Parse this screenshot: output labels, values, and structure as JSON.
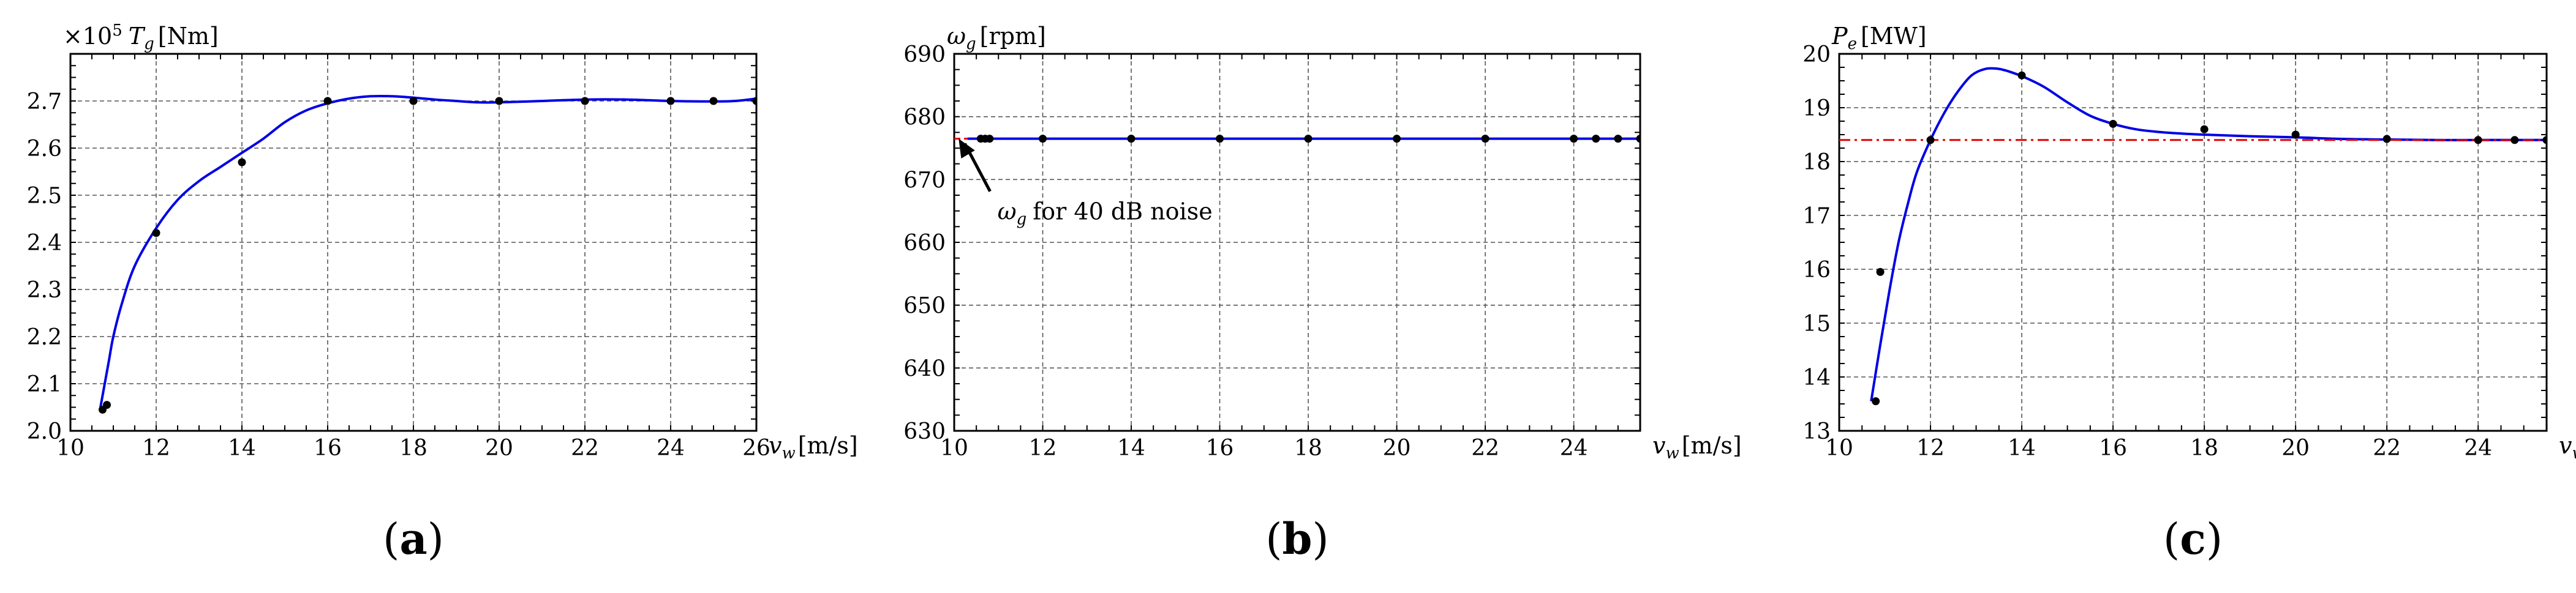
{
  "chart_data": [
    {
      "type": "line",
      "panel_label": "a",
      "ylabel": {
        "multiplier": "×10",
        "exponent": "5",
        "symbol": "T",
        "subscript": "g",
        "unit": "[Nm]"
      },
      "xlabel": {
        "symbol": "v",
        "subscript": "w",
        "unit": "[m/s]"
      },
      "xlim": [
        10,
        26
      ],
      "ylim": [
        2.0,
        2.8
      ],
      "x_ticks": [
        10,
        12,
        14,
        16,
        18,
        20,
        22,
        24,
        26
      ],
      "y_ticks": [
        2.0,
        2.1,
        2.2,
        2.3,
        2.4,
        2.5,
        2.6,
        2.7
      ],
      "x_tick_labels": [
        "10",
        "12",
        "14",
        "16",
        "18",
        "20",
        "22",
        "24",
        "26"
      ],
      "y_tick_labels": [
        "2.0",
        "2.1",
        "2.2",
        "2.3",
        "2.4",
        "2.5",
        "2.6",
        "2.7"
      ],
      "grid": true,
      "series": [
        {
          "role": "fitted-curve",
          "style": "solid",
          "color": "#0000e6",
          "x": [
            10.7,
            10.8,
            10.9,
            11.0,
            11.2,
            11.5,
            12.0,
            12.5,
            13.0,
            13.5,
            14.0,
            14.5,
            15.0,
            15.5,
            16.0,
            16.5,
            17.0,
            17.5,
            18.0,
            18.5,
            19.0,
            19.5,
            20.0,
            21.0,
            22.0,
            23.0,
            24.0,
            25.0,
            25.5,
            26.0
          ],
          "y": [
            2.05,
            2.1,
            2.15,
            2.2,
            2.27,
            2.35,
            2.43,
            2.49,
            2.53,
            2.56,
            2.59,
            2.62,
            2.655,
            2.68,
            2.695,
            2.705,
            2.71,
            2.71,
            2.707,
            2.703,
            2.7,
            2.697,
            2.697,
            2.7,
            2.703,
            2.703,
            2.7,
            2.699,
            2.7,
            2.705
          ]
        },
        {
          "role": "data-points",
          "style": "markers",
          "color": "#000000",
          "x": [
            10.75,
            10.85,
            12.0,
            14.0,
            16.0,
            18.0,
            20.0,
            22.0,
            24.0,
            25.0,
            26.0
          ],
          "y": [
            2.045,
            2.055,
            2.42,
            2.57,
            2.7,
            2.7,
            2.7,
            2.7,
            2.7,
            2.7,
            2.7
          ]
        }
      ]
    },
    {
      "type": "line",
      "panel_label": "b",
      "ylabel": {
        "symbol": "ω",
        "subscript": "g",
        "unit": "[rpm]"
      },
      "xlabel": {
        "symbol": "v",
        "subscript": "w",
        "unit": "[m/s]"
      },
      "xlim": [
        10,
        25.5
      ],
      "ylim": [
        630,
        690
      ],
      "x_ticks": [
        10,
        12,
        14,
        16,
        18,
        20,
        22,
        24
      ],
      "y_ticks": [
        630,
        640,
        650,
        660,
        670,
        680,
        690
      ],
      "x_tick_labels": [
        "10",
        "12",
        "14",
        "16",
        "18",
        "20",
        "22",
        "24"
      ],
      "y_tick_labels": [
        "630",
        "640",
        "650",
        "660",
        "670",
        "680",
        "690"
      ],
      "grid": true,
      "series": [
        {
          "role": "fitted-curve",
          "style": "solid",
          "color": "#0000e6",
          "x": [
            10.3,
            25.5
          ],
          "y": [
            676.5,
            676.5
          ]
        },
        {
          "role": "reference-line",
          "style": "dashed",
          "color": "#e00000",
          "x": [
            10.0,
            10.3
          ],
          "y": [
            676.5,
            676.5
          ]
        },
        {
          "role": "data-points",
          "style": "markers",
          "color": "#000000",
          "x": [
            10.6,
            10.7,
            10.8,
            12.0,
            14.0,
            16.0,
            18.0,
            20.0,
            22.0,
            24.0,
            24.5,
            25.0,
            25.5
          ],
          "y": [
            676.5,
            676.5,
            676.5,
            676.5,
            676.5,
            676.5,
            676.5,
            676.5,
            676.5,
            676.5,
            676.5,
            676.5,
            676.5
          ]
        }
      ],
      "annotations": [
        {
          "symbol": "ω",
          "subscript": "g",
          "text": "for 40 dB noise",
          "arrow_to": [
            10.1,
            676.5
          ],
          "text_at": [
            10.7,
            665
          ]
        }
      ]
    },
    {
      "type": "line",
      "panel_label": "c",
      "ylabel": {
        "symbol": "P",
        "subscript": "e",
        "unit": "[MW]"
      },
      "xlabel": {
        "symbol": "v",
        "subscript": "w",
        "unit": "[m/s]"
      },
      "xlim": [
        10,
        25.5
      ],
      "ylim": [
        13,
        20
      ],
      "x_ticks": [
        10,
        12,
        14,
        16,
        18,
        20,
        22,
        24
      ],
      "y_ticks": [
        13,
        14,
        15,
        16,
        17,
        18,
        19,
        20
      ],
      "x_tick_labels": [
        "10",
        "12",
        "14",
        "16",
        "18",
        "20",
        "22",
        "24"
      ],
      "y_tick_labels": [
        "13",
        "14",
        "15",
        "16",
        "17",
        "18",
        "19",
        "20"
      ],
      "grid": true,
      "series": [
        {
          "role": "fitted-curve",
          "style": "solid",
          "color": "#0000e6",
          "x": [
            10.7,
            10.9,
            11.1,
            11.3,
            11.5,
            11.7,
            12.0,
            12.3,
            12.6,
            12.9,
            13.2,
            13.5,
            13.8,
            14.1,
            14.5,
            15.0,
            15.5,
            16.0,
            16.5,
            17.0,
            17.5,
            18.0,
            19.0,
            20.0,
            21.0,
            22.0,
            23.0,
            24.0,
            25.0,
            25.5
          ],
          "y": [
            13.55,
            14.6,
            15.6,
            16.5,
            17.2,
            17.8,
            18.4,
            18.9,
            19.3,
            19.6,
            19.72,
            19.72,
            19.65,
            19.55,
            19.38,
            19.1,
            18.85,
            18.7,
            18.6,
            18.55,
            18.52,
            18.5,
            18.47,
            18.45,
            18.42,
            18.41,
            18.4,
            18.4,
            18.4,
            18.4
          ]
        },
        {
          "role": "reference-line",
          "style": "dash-dot",
          "color": "#e00000",
          "x": [
            10.0,
            25.5
          ],
          "y": [
            18.4,
            18.4
          ]
        },
        {
          "role": "data-points",
          "style": "markers",
          "color": "#000000",
          "x": [
            10.8,
            10.9,
            12.0,
            14.0,
            16.0,
            18.0,
            20.0,
            22.0,
            24.0,
            24.8,
            25.5
          ],
          "y": [
            13.55,
            15.95,
            18.4,
            19.6,
            18.7,
            18.6,
            18.5,
            18.42,
            18.4,
            18.4,
            18.4
          ]
        }
      ]
    }
  ]
}
